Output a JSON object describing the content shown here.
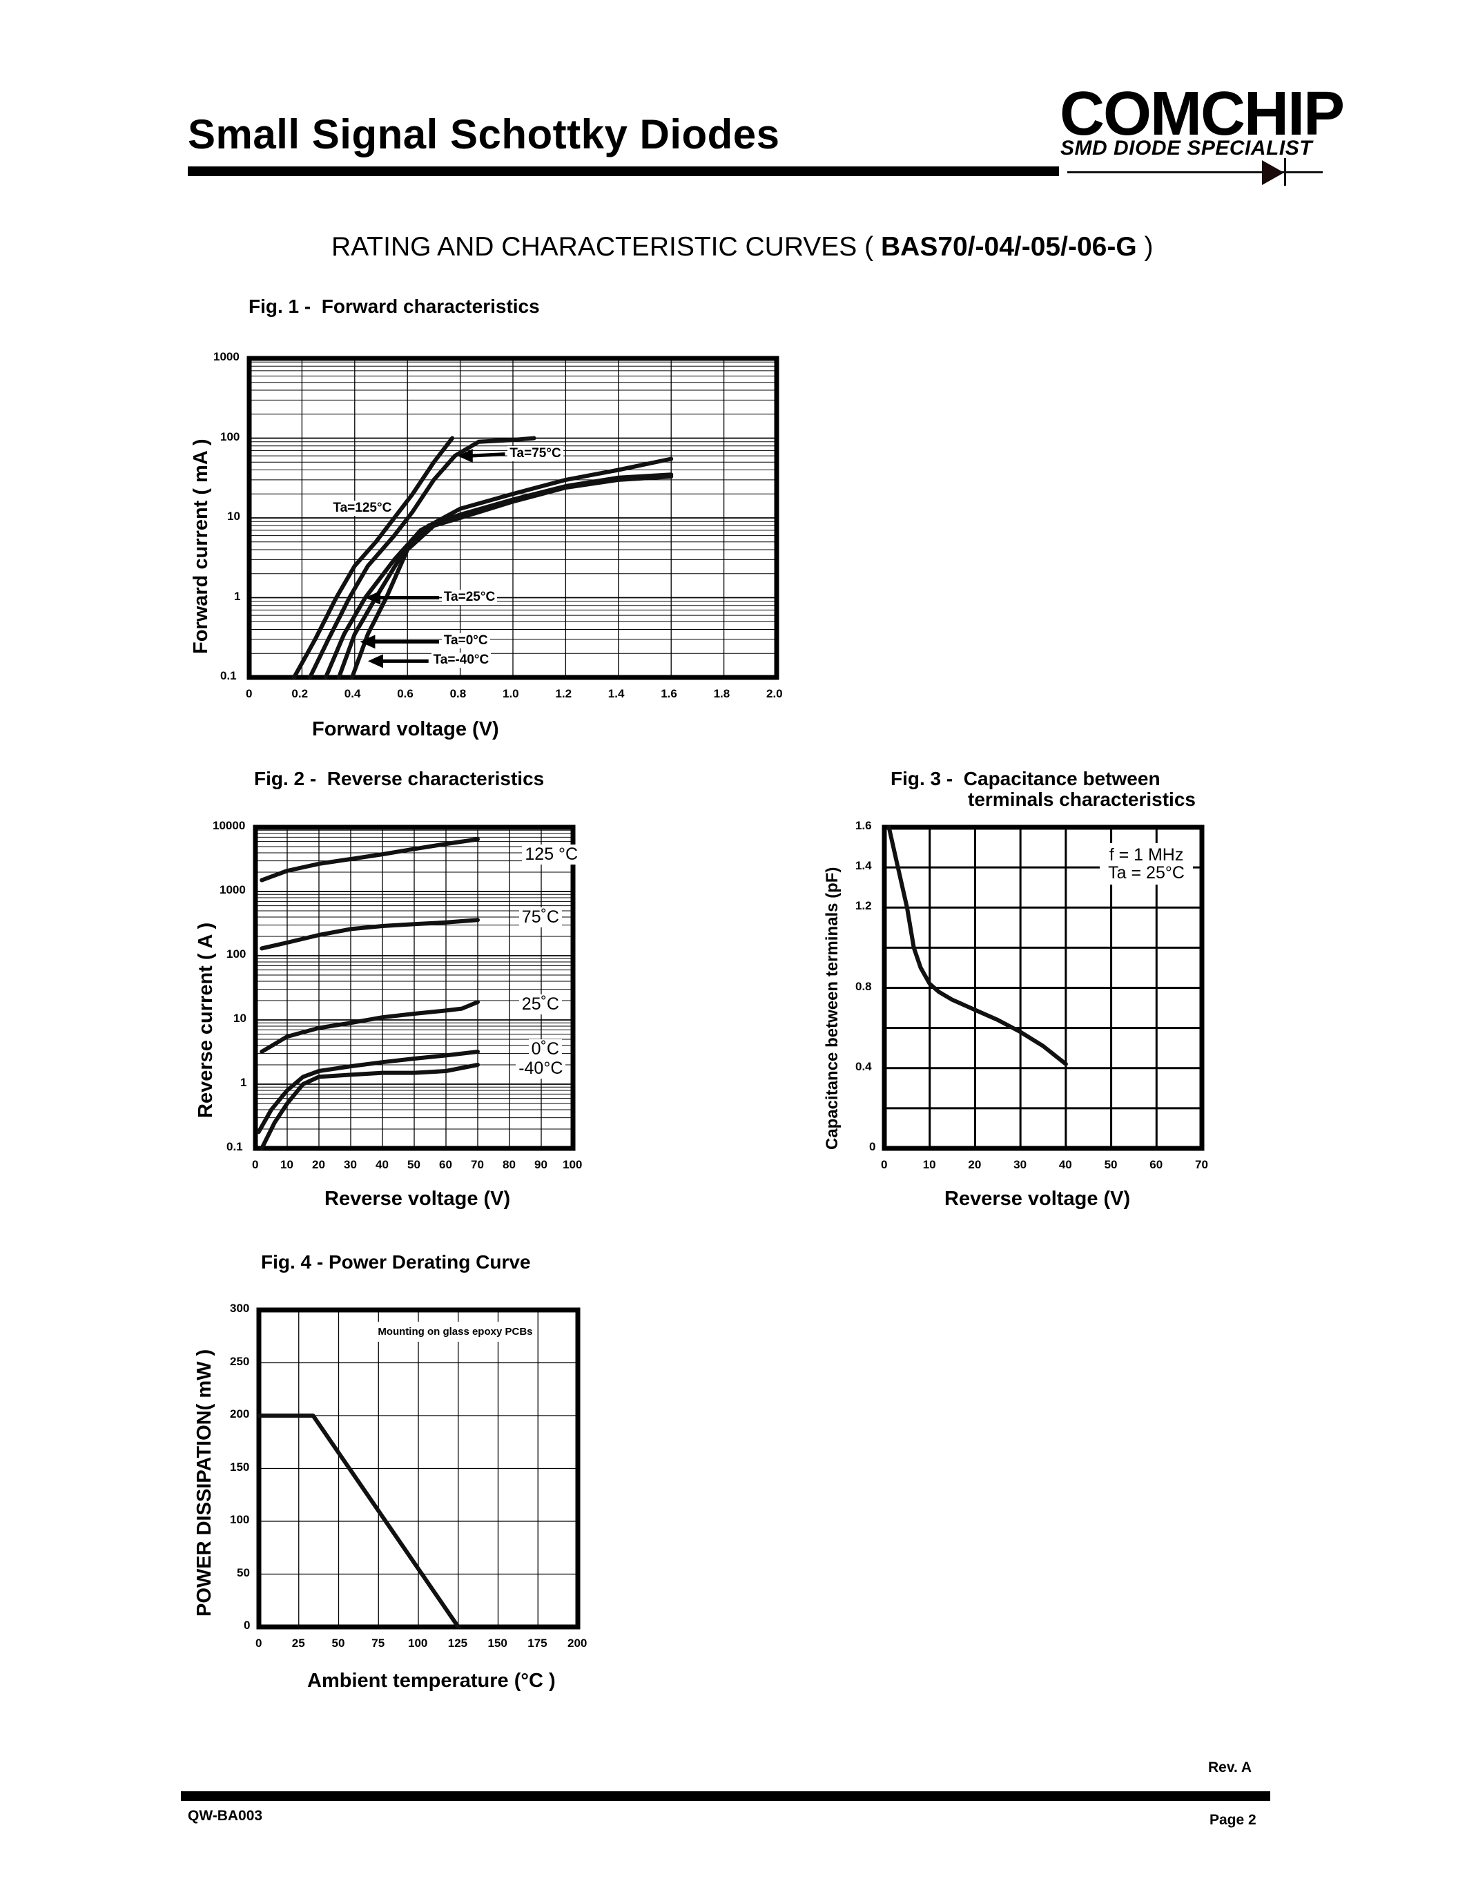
{
  "header": {
    "title": "Small Signal Schottky Diodes",
    "logo": "COMCHIP",
    "logo_tagline": "SMD DIODE SPECIALIST"
  },
  "section": {
    "title_prefix": "RATING AND CHARACTERISTIC CURVES (",
    "part_number": "BAS70/-04/-05/-06-G",
    "title_suffix": ")"
  },
  "footer": {
    "revision": "Rev. A",
    "doc_number": "QW-BA003",
    "page": "Page 2"
  },
  "figures": {
    "fig1": {
      "title": "Fig. 1 -  Forward characteristics"
    },
    "fig2": {
      "title": "Fig. 2 -  Reverse characteristics"
    },
    "fig3": {
      "title_line1": "Fig. 3 -  Capacitance between",
      "title_line2": "terminals characteristics"
    },
    "fig4": {
      "title": "Fig. 4 - Power Derating Curve"
    }
  },
  "chart_data": [
    {
      "id": "fig1",
      "type": "line",
      "title": "Fig. 1 - Forward characteristics",
      "xlabel": "Forward voltage (V)",
      "ylabel": "Forward current ( mA )",
      "xlim": [
        0,
        2.0
      ],
      "ylim": [
        0.1,
        1000
      ],
      "yscale": "log",
      "x_ticks": [
        "0",
        "0.2",
        "0.4",
        "0.6",
        "0.8",
        "1.0",
        "1.2",
        "1.4",
        "1.6",
        "1.8",
        "2.0"
      ],
      "y_ticks": [
        "1000",
        "100",
        "10",
        "1",
        "0.1"
      ],
      "grid": true,
      "series": [
        {
          "name": "Ta=125°C",
          "x": [
            0.17,
            0.25,
            0.33,
            0.4,
            0.48,
            0.55,
            0.62,
            0.7,
            0.77
          ],
          "y": [
            0.1,
            0.3,
            1,
            2.5,
            5,
            10,
            20,
            50,
            100
          ]
        },
        {
          "name": "Ta=75°C",
          "x": [
            0.23,
            0.3,
            0.38,
            0.45,
            0.55,
            0.62,
            0.7,
            0.78,
            0.87,
            1.0,
            1.08
          ],
          "y": [
            0.1,
            0.3,
            1,
            2.5,
            6,
            12,
            30,
            60,
            90,
            95,
            100
          ]
        },
        {
          "name": "Ta=25°C",
          "x": [
            0.29,
            0.36,
            0.44,
            0.55,
            0.65,
            0.8,
            1.0,
            1.2,
            1.4,
            1.6
          ],
          "y": [
            0.1,
            0.35,
            1,
            3,
            7,
            13,
            20,
            30,
            40,
            55
          ]
        },
        {
          "name": "Ta=0°C",
          "x": [
            0.34,
            0.4,
            0.48,
            0.58,
            0.68,
            0.8,
            1.0,
            1.2,
            1.4,
            1.6
          ],
          "y": [
            0.1,
            0.35,
            1,
            3.5,
            8,
            11,
            17,
            25,
            32,
            35
          ]
        },
        {
          "name": "Ta=-40°C",
          "x": [
            0.39,
            0.45,
            0.52,
            0.6,
            0.7,
            0.8,
            1.0,
            1.2,
            1.4,
            1.6
          ],
          "y": [
            0.1,
            0.35,
            1,
            4,
            8,
            10,
            16,
            24,
            30,
            33
          ]
        }
      ],
      "annotations": [
        "Ta=125°C",
        "Ta=75°C",
        "Ta=25°C",
        "Ta=0°C",
        "Ta=-40°C"
      ]
    },
    {
      "id": "fig2",
      "type": "line",
      "title": "Fig. 2 - Reverse characteristics",
      "xlabel": "Reverse voltage (V)",
      "ylabel": "Reverse current ( A )",
      "xlim": [
        0,
        100
      ],
      "ylim": [
        0.1,
        10000
      ],
      "yscale": "log",
      "x_ticks": [
        "0",
        "10",
        "20",
        "30",
        "40",
        "50",
        "60",
        "70",
        "80",
        "90",
        "100"
      ],
      "y_ticks": [
        "10000",
        "1000",
        "100",
        "10",
        "1",
        "0.1"
      ],
      "grid": true,
      "series": [
        {
          "name": "125°C",
          "x": [
            2,
            10,
            20,
            30,
            40,
            50,
            60,
            70
          ],
          "y": [
            1500,
            2100,
            2700,
            3200,
            3800,
            4600,
            5500,
            6500
          ]
        },
        {
          "name": "75°C",
          "x": [
            2,
            10,
            20,
            30,
            40,
            50,
            60,
            70
          ],
          "y": [
            130,
            160,
            210,
            260,
            290,
            310,
            330,
            360
          ]
        },
        {
          "name": "25°C",
          "x": [
            2,
            10,
            20,
            30,
            40,
            50,
            60,
            65,
            70
          ],
          "y": [
            3.2,
            5.5,
            7.5,
            9,
            11,
            12.5,
            14,
            15,
            19
          ]
        },
        {
          "name": "0°C",
          "x": [
            1,
            5,
            10,
            15,
            20,
            30,
            40,
            50,
            60,
            70
          ],
          "y": [
            0.18,
            0.4,
            0.8,
            1.3,
            1.6,
            1.9,
            2.2,
            2.5,
            2.8,
            3.2
          ]
        },
        {
          "name": "-40°C",
          "x": [
            2,
            6,
            10,
            15,
            20,
            30,
            40,
            50,
            60,
            70
          ],
          "y": [
            0.1,
            0.25,
            0.5,
            1.0,
            1.3,
            1.4,
            1.5,
            1.5,
            1.6,
            2.0
          ]
        }
      ],
      "annotations": [
        "125 °C",
        "75˚C",
        "25˚C",
        "0˚C",
        "-40°C"
      ]
    },
    {
      "id": "fig3",
      "type": "line",
      "title": "Fig. 3 - Capacitance between terminals characteristics",
      "xlabel": "Reverse voltage (V)",
      "ylabel": "Capacitance between terminals (pF)",
      "xlim": [
        0,
        70
      ],
      "ylim": [
        0,
        1.6
      ],
      "x_ticks": [
        "0",
        "10",
        "20",
        "30",
        "40",
        "50",
        "60",
        "70"
      ],
      "y_ticks": [
        "1.6",
        "1.4",
        "1.2",
        "0.8",
        "0.4",
        "0"
      ],
      "grid": true,
      "series": [
        {
          "name": "f = 1 MHz, Ta = 25°C",
          "x": [
            1,
            3,
            5,
            6.5,
            8,
            10,
            12,
            15,
            20,
            25,
            30,
            35,
            40
          ],
          "y": [
            1.6,
            1.4,
            1.2,
            1.0,
            0.9,
            0.82,
            0.78,
            0.74,
            0.69,
            0.64,
            0.58,
            0.51,
            0.42
          ]
        }
      ],
      "annotations": [
        "f = 1 MHz",
        "Ta = 25°C"
      ]
    },
    {
      "id": "fig4",
      "type": "line",
      "title": "Fig. 4 - Power Derating Curve",
      "xlabel": "Ambient temperature (°C )",
      "ylabel": "POWER  DISSIPATION( mW )",
      "xlim": [
        0,
        200
      ],
      "ylim": [
        0,
        300
      ],
      "x_ticks": [
        "0",
        "25",
        "50",
        "75",
        "100",
        "125",
        "150",
        "175",
        "200"
      ],
      "y_ticks": [
        "300",
        "250",
        "200",
        "150",
        "100",
        "50",
        "0"
      ],
      "grid": true,
      "series": [
        {
          "name": "Power Dissipation",
          "x": [
            0,
            34,
            125
          ],
          "y": [
            200,
            200,
            0
          ]
        }
      ],
      "annotations": [
        "Mounting on glass epoxy PCBs"
      ]
    }
  ]
}
